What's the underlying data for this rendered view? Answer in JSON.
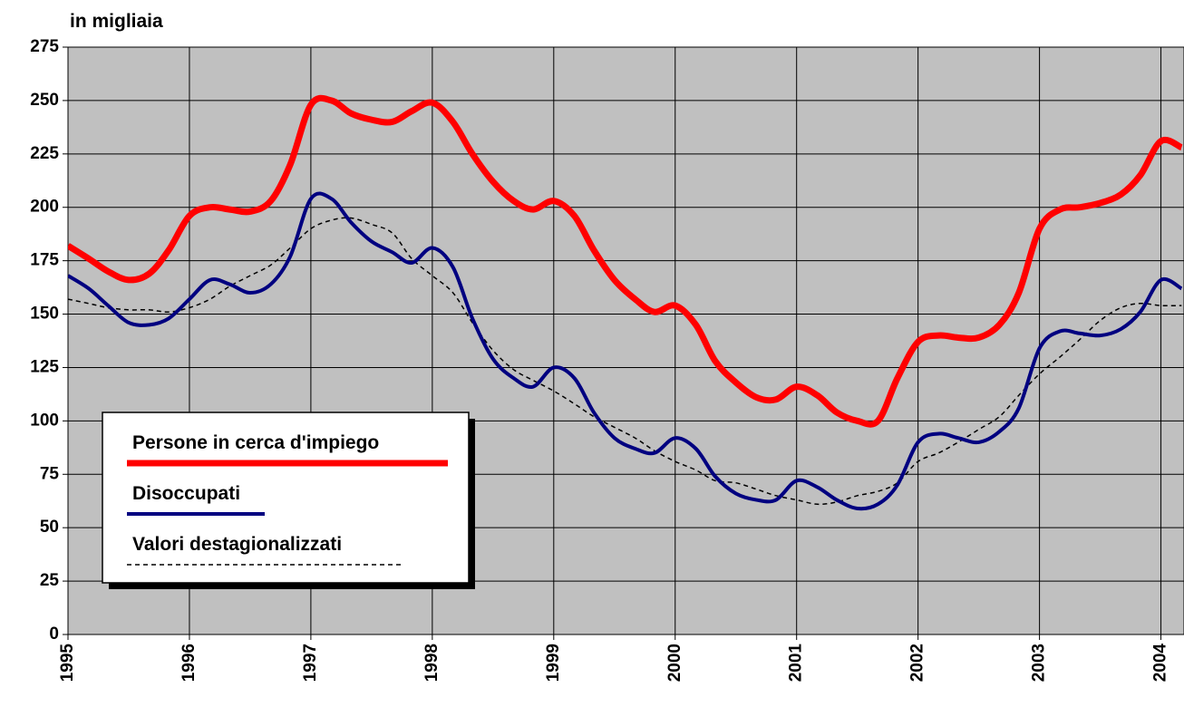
{
  "chart_data": {
    "type": "line",
    "title": "in migliaia",
    "x": [
      1995,
      1995.17,
      1995.33,
      1995.5,
      1995.67,
      1995.83,
      1996,
      1996.17,
      1996.33,
      1996.5,
      1996.67,
      1996.83,
      1997,
      1997.17,
      1997.33,
      1997.5,
      1997.67,
      1997.83,
      1998,
      1998.17,
      1998.33,
      1998.5,
      1998.67,
      1998.83,
      1999,
      1999.17,
      1999.33,
      1999.5,
      1999.67,
      1999.83,
      2000,
      2000.17,
      2000.33,
      2000.5,
      2000.67,
      2000.83,
      2001,
      2001.17,
      2001.33,
      2001.5,
      2001.67,
      2001.83,
      2002,
      2002.17,
      2002.33,
      2002.5,
      2002.67,
      2002.83,
      2003,
      2003.17,
      2003.33,
      2003.5,
      2003.67,
      2003.83,
      2004,
      2004.17
    ],
    "series": [
      {
        "name": "Persone in cerca d'impiego",
        "color": "#ff0000",
        "width": 7,
        "dash": "none",
        "values": [
          182,
          176,
          170,
          166,
          169,
          180,
          196,
          200,
          199,
          198,
          203,
          220,
          248,
          250,
          244,
          241,
          240,
          245,
          249,
          240,
          225,
          212,
          203,
          199,
          203,
          196,
          180,
          166,
          157,
          151,
          154,
          145,
          128,
          118,
          111,
          110,
          116,
          112,
          104,
          100,
          100,
          120,
          137,
          140,
          139,
          139,
          145,
          160,
          190,
          199,
          200,
          202,
          206,
          215,
          231,
          228
        ]
      },
      {
        "name": "Disoccupati",
        "color": "#000080",
        "width": 4,
        "dash": "none",
        "values": [
          168,
          162,
          154,
          146,
          145,
          148,
          157,
          166,
          164,
          160,
          164,
          177,
          204,
          204,
          193,
          184,
          179,
          174,
          181,
          172,
          148,
          129,
          120,
          116,
          125,
          120,
          104,
          92,
          87,
          85,
          92,
          87,
          74,
          66,
          63,
          63,
          72,
          69,
          63,
          59,
          61,
          70,
          90,
          94,
          92,
          90,
          95,
          106,
          134,
          142,
          141,
          140,
          143,
          151,
          166,
          162
        ]
      },
      {
        "name": "Valori destagionalizzati",
        "color": "#000000",
        "width": 1.5,
        "dash": "5 4",
        "values": [
          157,
          155,
          153,
          152,
          152,
          151,
          153,
          157,
          163,
          168,
          173,
          181,
          190,
          194,
          195,
          192,
          188,
          176,
          168,
          160,
          146,
          133,
          124,
          119,
          114,
          108,
          102,
          97,
          92,
          86,
          81,
          77,
          72,
          71,
          68,
          65,
          63,
          61,
          62,
          65,
          67,
          71,
          81,
          85,
          90,
          96,
          102,
          112,
          122,
          130,
          138,
          147,
          153,
          155,
          154,
          154
        ]
      }
    ],
    "xlim": [
      1995,
      2004.19
    ],
    "xticks": [
      1995,
      1996,
      1997,
      1998,
      1999,
      2000,
      2001,
      2002,
      2003,
      2004
    ],
    "ylim": [
      0,
      275
    ],
    "yticks": [
      0,
      25,
      50,
      75,
      100,
      125,
      150,
      175,
      200,
      225,
      250,
      275
    ],
    "grid": true,
    "background": "#c0c0c0",
    "legend": "lower left"
  }
}
